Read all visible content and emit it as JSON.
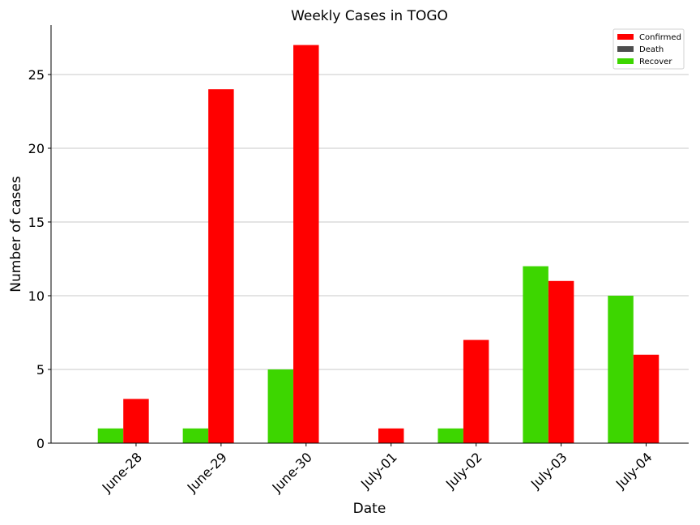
{
  "chart_data": {
    "type": "bar",
    "title": "Weekly Cases in TOGO",
    "xlabel": "Date",
    "ylabel": "Number of cases",
    "categories": [
      "June-28",
      "June-29",
      "June-30",
      "July-01",
      "July-02",
      "July-03",
      "July-04"
    ],
    "series": [
      {
        "name": "Confirmed",
        "color": "#ff0000",
        "values": [
          3,
          24,
          27,
          1,
          7,
          11,
          6
        ]
      },
      {
        "name": "Death",
        "color": "#4d4d4d",
        "values": [
          0,
          0,
          0,
          0,
          0,
          0,
          0
        ]
      },
      {
        "name": "Recover",
        "color": "#3dd600",
        "values": [
          1,
          1,
          5,
          0,
          1,
          12,
          10
        ]
      }
    ],
    "ylim": [
      0,
      28.35
    ],
    "yticks": [
      0,
      5,
      10,
      15,
      20,
      25
    ],
    "grid": "horizontal",
    "legend_position": "top-right"
  }
}
